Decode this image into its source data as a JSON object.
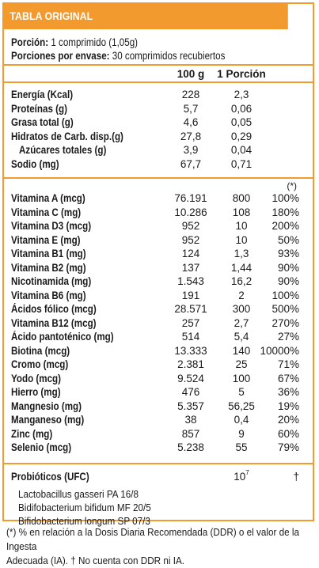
{
  "header": {
    "title": "TABLA ORIGINAL"
  },
  "serving": {
    "portion_label": "Porción:",
    "portion_value": "1 comprimido (1,05g)",
    "per_pack_label": "Porciones por envase:",
    "per_pack_value": "30 comprimidos recubiertos"
  },
  "columns": {
    "per100": "100 g",
    "perPortion": "1 Porción"
  },
  "macros": [
    {
      "label": "Energía (Kcal)",
      "per100": "228",
      "perPortion": "2,3",
      "sub": false
    },
    {
      "label": "Proteínas (g)",
      "per100": "5,7",
      "perPortion": "0,06",
      "sub": false
    },
    {
      "label": "Grasa total (g)",
      "per100": "4,6",
      "perPortion": "0,05",
      "sub": false
    },
    {
      "label": "Hidratos de Carb. disp.(g)",
      "per100": "27,8",
      "perPortion": "0,29",
      "sub": false
    },
    {
      "label": "Azúcares totales (g)",
      "per100": "3,9",
      "perPortion": "0,04",
      "sub": true
    },
    {
      "label": "Sodio (mg)",
      "per100": "67,7",
      "perPortion": "0,71",
      "sub": false
    }
  ],
  "ddr_marker": "(*)",
  "vitamins": [
    {
      "label": "Vitamina A (mcg)",
      "per100": "76.191",
      "perPortion": "800",
      "pct": "100%"
    },
    {
      "label": "Vitamina C (mg)",
      "per100": "10.286",
      "perPortion": "108",
      "pct": "180%"
    },
    {
      "label": "Vitamina D3 (mcg)",
      "per100": "952",
      "perPortion": "10",
      "pct": "200%"
    },
    {
      "label": "Vitamina E (mg)",
      "per100": "952",
      "perPortion": "10",
      "pct": "50%"
    },
    {
      "label": "Vitamina B1 (mg)",
      "per100": "124",
      "perPortion": "1,3",
      "pct": "93%"
    },
    {
      "label": "Vitamina B2 (mg)",
      "per100": "137",
      "perPortion": "1,44",
      "pct": "90%"
    },
    {
      "label": "Nicotinamida (mg)",
      "per100": "1.543",
      "perPortion": "16,2",
      "pct": "90%"
    },
    {
      "label": "Vitamina B6 (mg)",
      "per100": "191",
      "perPortion": "2",
      "pct": "100%"
    },
    {
      "label": "Ácidos fólico (mcg)",
      "per100": "28.571",
      "perPortion": "300",
      "pct": "500%"
    },
    {
      "label": "Vitamina B12 (mcg)",
      "per100": "257",
      "perPortion": "2,7",
      "pct": "270%"
    },
    {
      "label": "Ácido pantoténico (mg)",
      "per100": "514",
      "perPortion": "5,4",
      "pct": "27%"
    },
    {
      "label": "Biotina (mcg)",
      "per100": "13.333",
      "perPortion": "140",
      "pct": "10000%"
    },
    {
      "label": "Cromo (mcg)",
      "per100": "2.381",
      "perPortion": "25",
      "pct": "71%"
    },
    {
      "label": "Yodo (mcg)",
      "per100": "9.524",
      "perPortion": "100",
      "pct": "67%"
    },
    {
      "label": "Hierro (mg)",
      "per100": "476",
      "perPortion": "5",
      "pct": "36%"
    },
    {
      "label": "Mangnesio (mg)",
      "per100": "5.357",
      "perPortion": "56,25",
      "pct": "19%"
    },
    {
      "label": "Manganeso (mg)",
      "per100": "38",
      "perPortion": "0,4",
      "pct": "20%"
    },
    {
      "label": "Zinc (mg)",
      "per100": "857",
      "perPortion": "9",
      "pct": "60%"
    },
    {
      "label": "Selenio (mcg)",
      "per100": "5.238",
      "perPortion": "55",
      "pct": "79%"
    }
  ],
  "probiotics": {
    "label": "Probióticos (UFC)",
    "value_base": "10",
    "value_exp": "7",
    "mark": "†",
    "strains": [
      "Lactobacillus gasseri PA 16/8",
      "Bidifobacterium bifidum MF 20/5",
      "Bifidobacterium longum SP 07/3"
    ]
  },
  "footnote": {
    "line1": "(*) % en relación a la Dosis Diaria Recomendada (DDR) o el valor de la Ingesta",
    "line2": "Adecuada (IA). † No cuenta con DDR ni IA."
  },
  "colors": {
    "accent": "#f29a2e"
  }
}
